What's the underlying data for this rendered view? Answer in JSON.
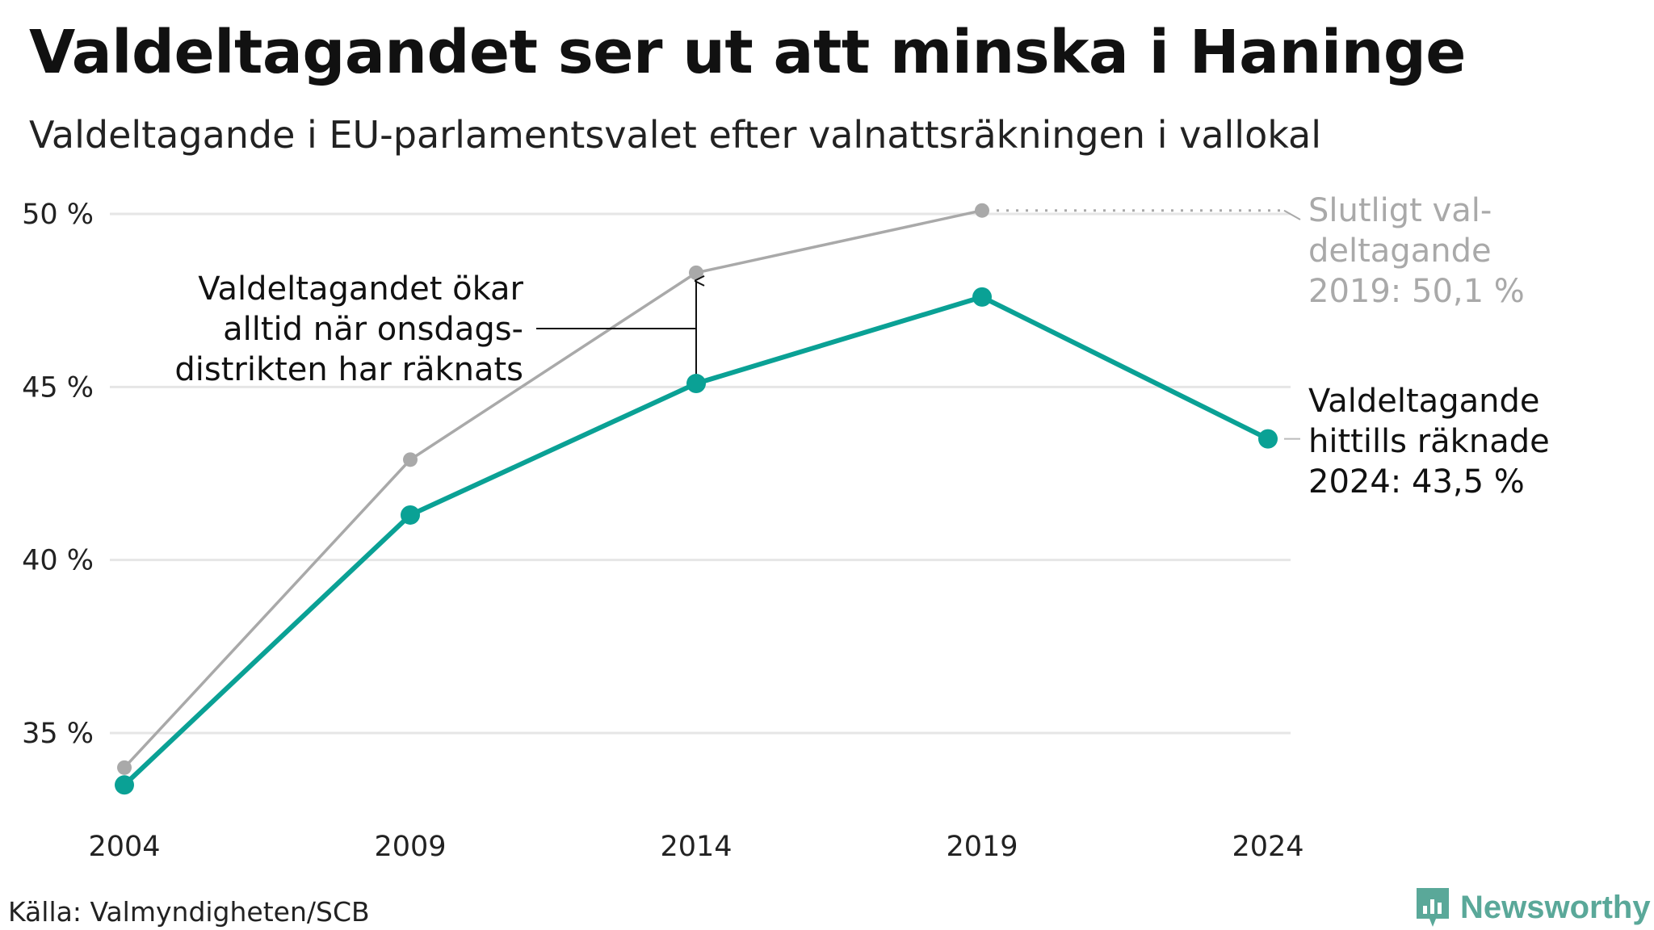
{
  "title": "Valdeltagandet ser ut att minska i Haninge",
  "subtitle": "Valdeltagande i EU-parlamentsvalet efter valnattsräkningen i vallokal",
  "source": "Källa: Valmyndigheten/SCB",
  "brand": "Newsworthy",
  "colors": {
    "accent": "#0aa195",
    "grey": "#a9a9a9",
    "grid": "#e6e6e6",
    "brand": "#5aa899"
  },
  "chart_data": {
    "type": "line",
    "x": [
      "2004",
      "2009",
      "2014",
      "2019",
      "2024"
    ],
    "y_ticks": [
      "35 %",
      "40 %",
      "45 %",
      "50 %"
    ],
    "ylim": [
      32,
      51
    ],
    "grid": true,
    "series": [
      {
        "key": "final",
        "values": [
          34.0,
          42.9,
          48.3,
          50.1,
          null
        ]
      },
      {
        "key": "counted",
        "values": [
          33.5,
          41.3,
          45.1,
          47.6,
          43.5
        ]
      }
    ],
    "annotations": {
      "arrow": [
        "Valdeltagandet ökar",
        "alltid när onsdags-",
        "distrikten har räknats"
      ],
      "final_2019": [
        "Slutligt val-",
        "deltagande",
        "2019: 50,1 %"
      ],
      "counted_2024": [
        "Valdeltagande",
        "hittills räknade",
        "2024: 43,5 %"
      ]
    }
  }
}
